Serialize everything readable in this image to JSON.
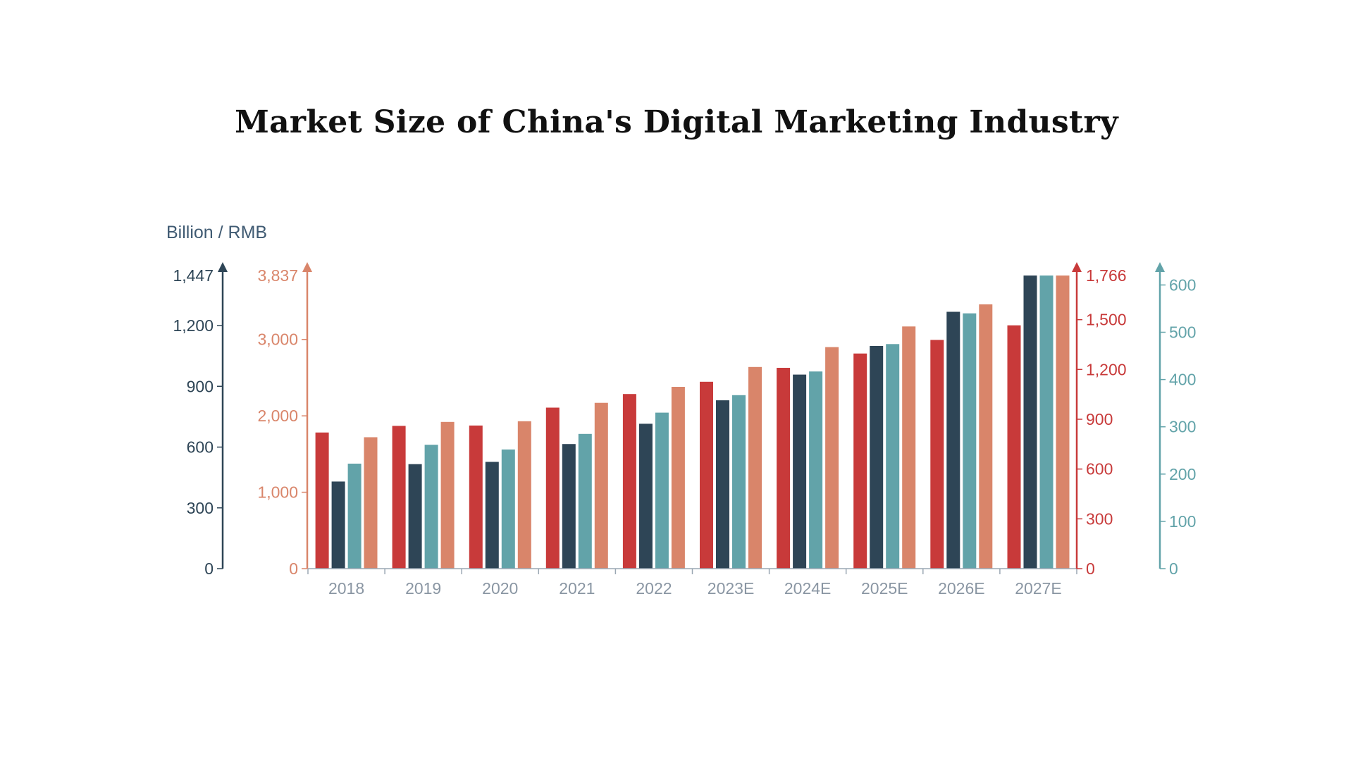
{
  "chart_data": {
    "type": "bar",
    "title": "Market Size of China's Digital Marketing Industry",
    "unit_label": "Billion / RMB",
    "categories": [
      "2018",
      "2019",
      "2020",
      "2021",
      "2022",
      "2023E",
      "2024E",
      "2025E",
      "2026E",
      "2027E"
    ],
    "axes": [
      {
        "id": "ax_red",
        "side": "right",
        "inner": true,
        "color": "#c83a3a",
        "max": 1766,
        "ticks": [
          0,
          300,
          600,
          900,
          1200,
          1500
        ],
        "top_label": "1,766"
      },
      {
        "id": "ax_dark",
        "side": "left",
        "inner": false,
        "color": "#2e4556",
        "max": 1447,
        "ticks": [
          0,
          300,
          600,
          900,
          1200
        ],
        "top_label": "1,447"
      },
      {
        "id": "ax_teal",
        "side": "right",
        "inner": false,
        "color": "#62a3a9",
        "max": 620,
        "ticks": [
          0,
          100,
          200,
          300,
          400,
          500,
          600
        ],
        "top_label": ""
      },
      {
        "id": "ax_orange",
        "side": "left",
        "inner": true,
        "color": "#d9856a",
        "max": 3837,
        "ticks": [
          0,
          1000,
          2000,
          3000
        ],
        "top_label": "3,837"
      }
    ],
    "series": [
      {
        "axis": "ax_red",
        "color": "#c83a3a",
        "values": [
          820,
          860,
          862,
          970,
          1052,
          1126,
          1210,
          1296,
          1378,
          1466
        ]
      },
      {
        "axis": "ax_dark",
        "color": "#2e4556",
        "values": [
          430,
          516,
          527,
          615,
          715,
          831,
          958,
          1099,
          1268,
          1447
        ]
      },
      {
        "axis": "ax_teal",
        "color": "#62a3a9",
        "values": [
          222,
          262,
          252,
          285,
          330,
          367,
          417,
          475,
          540,
          620
        ]
      },
      {
        "axis": "ax_orange",
        "color": "#d9856a",
        "values": [
          1720,
          1920,
          1930,
          2170,
          2380,
          2640,
          2900,
          3170,
          3460,
          3837
        ]
      }
    ],
    "grid": false,
    "legend": "none"
  }
}
